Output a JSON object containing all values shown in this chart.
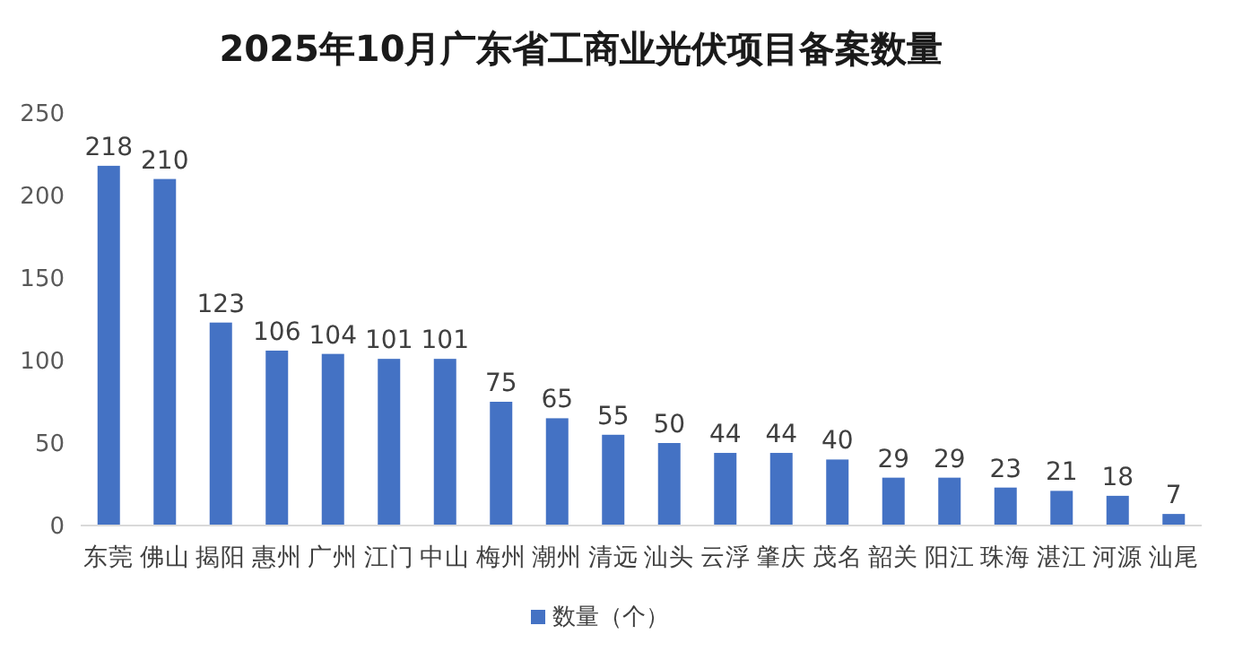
{
  "chart_data": {
    "type": "bar",
    "title": "2025年10月广东省工商业光伏项目备案数量",
    "categories": [
      "东莞",
      "佛山",
      "揭阳",
      "惠州",
      "广州",
      "江门",
      "中山",
      "梅州",
      "潮州",
      "清远",
      "汕头",
      "云浮",
      "肇庆",
      "茂名",
      "韶关",
      "阳江",
      "珠海",
      "湛江",
      "河源",
      "汕尾"
    ],
    "series": [
      {
        "name": "数量（个）",
        "color": "#4472c4",
        "values": [
          218,
          210,
          123,
          106,
          104,
          101,
          101,
          75,
          65,
          55,
          50,
          44,
          44,
          40,
          29,
          29,
          23,
          21,
          18,
          7
        ]
      }
    ],
    "ylim": [
      0,
      250
    ],
    "yticks": [
      0,
      50,
      100,
      150,
      200,
      250
    ],
    "data_labels": true,
    "grid": false,
    "legend": "bottom"
  }
}
